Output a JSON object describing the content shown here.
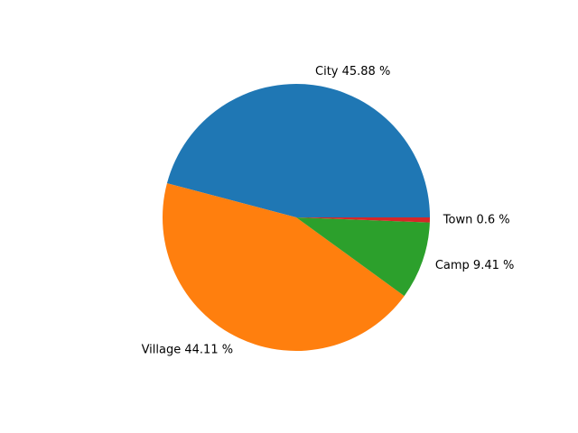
{
  "chart_data": {
    "type": "pie",
    "title": "",
    "slices": [
      {
        "label": "City",
        "value": 45.88,
        "display": "City 45.88 %",
        "color": "#1f77b4"
      },
      {
        "label": "Village",
        "value": 44.11,
        "display": "Village 44.11 %",
        "color": "#ff7f0e"
      },
      {
        "label": "Camp",
        "value": 9.41,
        "display": "Camp 9.41 %",
        "color": "#2ca02c"
      },
      {
        "label": "Town",
        "value": 0.6,
        "display": "Town 0.6 %",
        "color": "#d62728"
      }
    ],
    "start_angle": 0,
    "direction": "counterclockwise",
    "legend": "none"
  }
}
